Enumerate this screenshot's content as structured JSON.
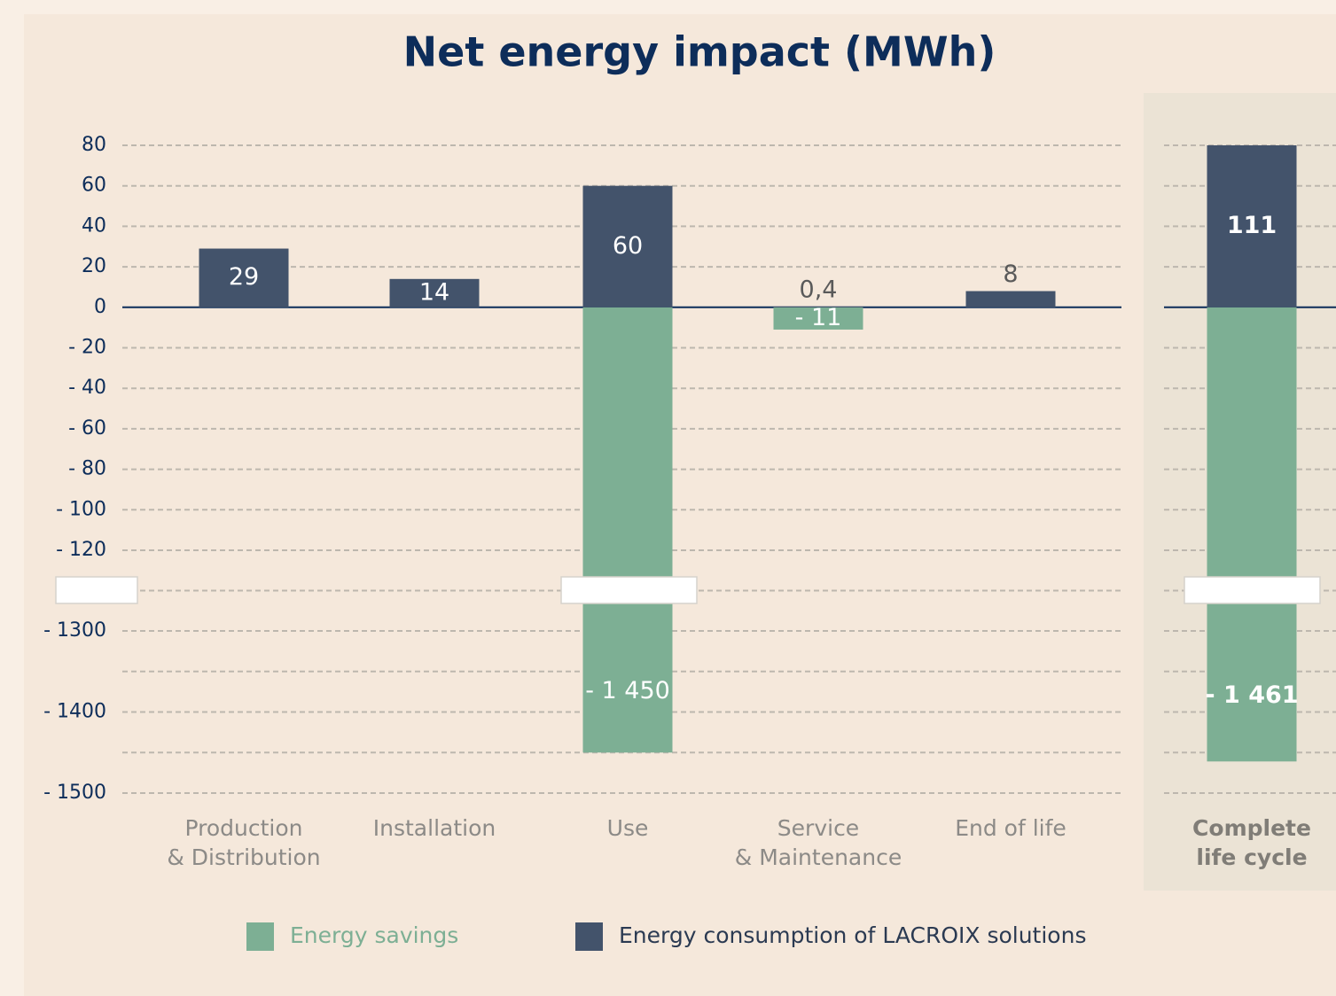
{
  "chart_data": {
    "type": "bar",
    "title": "Net energy impact (MWh)",
    "categories": [
      "Production\n& Distribution",
      "Installation",
      "Use",
      "Service\n& Maintenance",
      "End of life",
      "Complete\nlife cycle"
    ],
    "highlight_index": 5,
    "series": [
      {
        "name": "Energy savings",
        "color": "#7daf94",
        "values": [
          null,
          null,
          -1450,
          -11,
          null,
          -1461
        ],
        "value_labels": [
          null,
          null,
          "- 1 450",
          "- 11",
          null,
          "- 1 461"
        ]
      },
      {
        "name": "Energy consumption of LACROIX solutions",
        "color": "#43536b",
        "values": [
          29,
          14,
          60,
          0.4,
          8,
          111
        ],
        "value_labels": [
          "29",
          "14",
          "60",
          "0,4",
          "8",
          "111"
        ]
      }
    ],
    "ylim": [
      -1500,
      80
    ],
    "ybreak": [
      -1300,
      -120
    ],
    "yticks": [
      80,
      60,
      40,
      20,
      0,
      {
        "value": -20,
        "label": "- 20"
      },
      {
        "value": -40,
        "label": "- 40"
      },
      {
        "value": -60,
        "label": "- 60"
      },
      {
        "value": -80,
        "label": "- 80"
      },
      {
        "value": -100,
        "label": "- 100"
      },
      {
        "value": -120,
        "label": "- 120"
      },
      {
        "value": -1300,
        "label": "- 1300"
      },
      {
        "value": -1400,
        "label": "- 1400"
      },
      {
        "value": -1500,
        "label": "- 1500"
      }
    ],
    "ygrid_minor": [
      -1350,
      -1450
    ],
    "grid": true
  }
}
